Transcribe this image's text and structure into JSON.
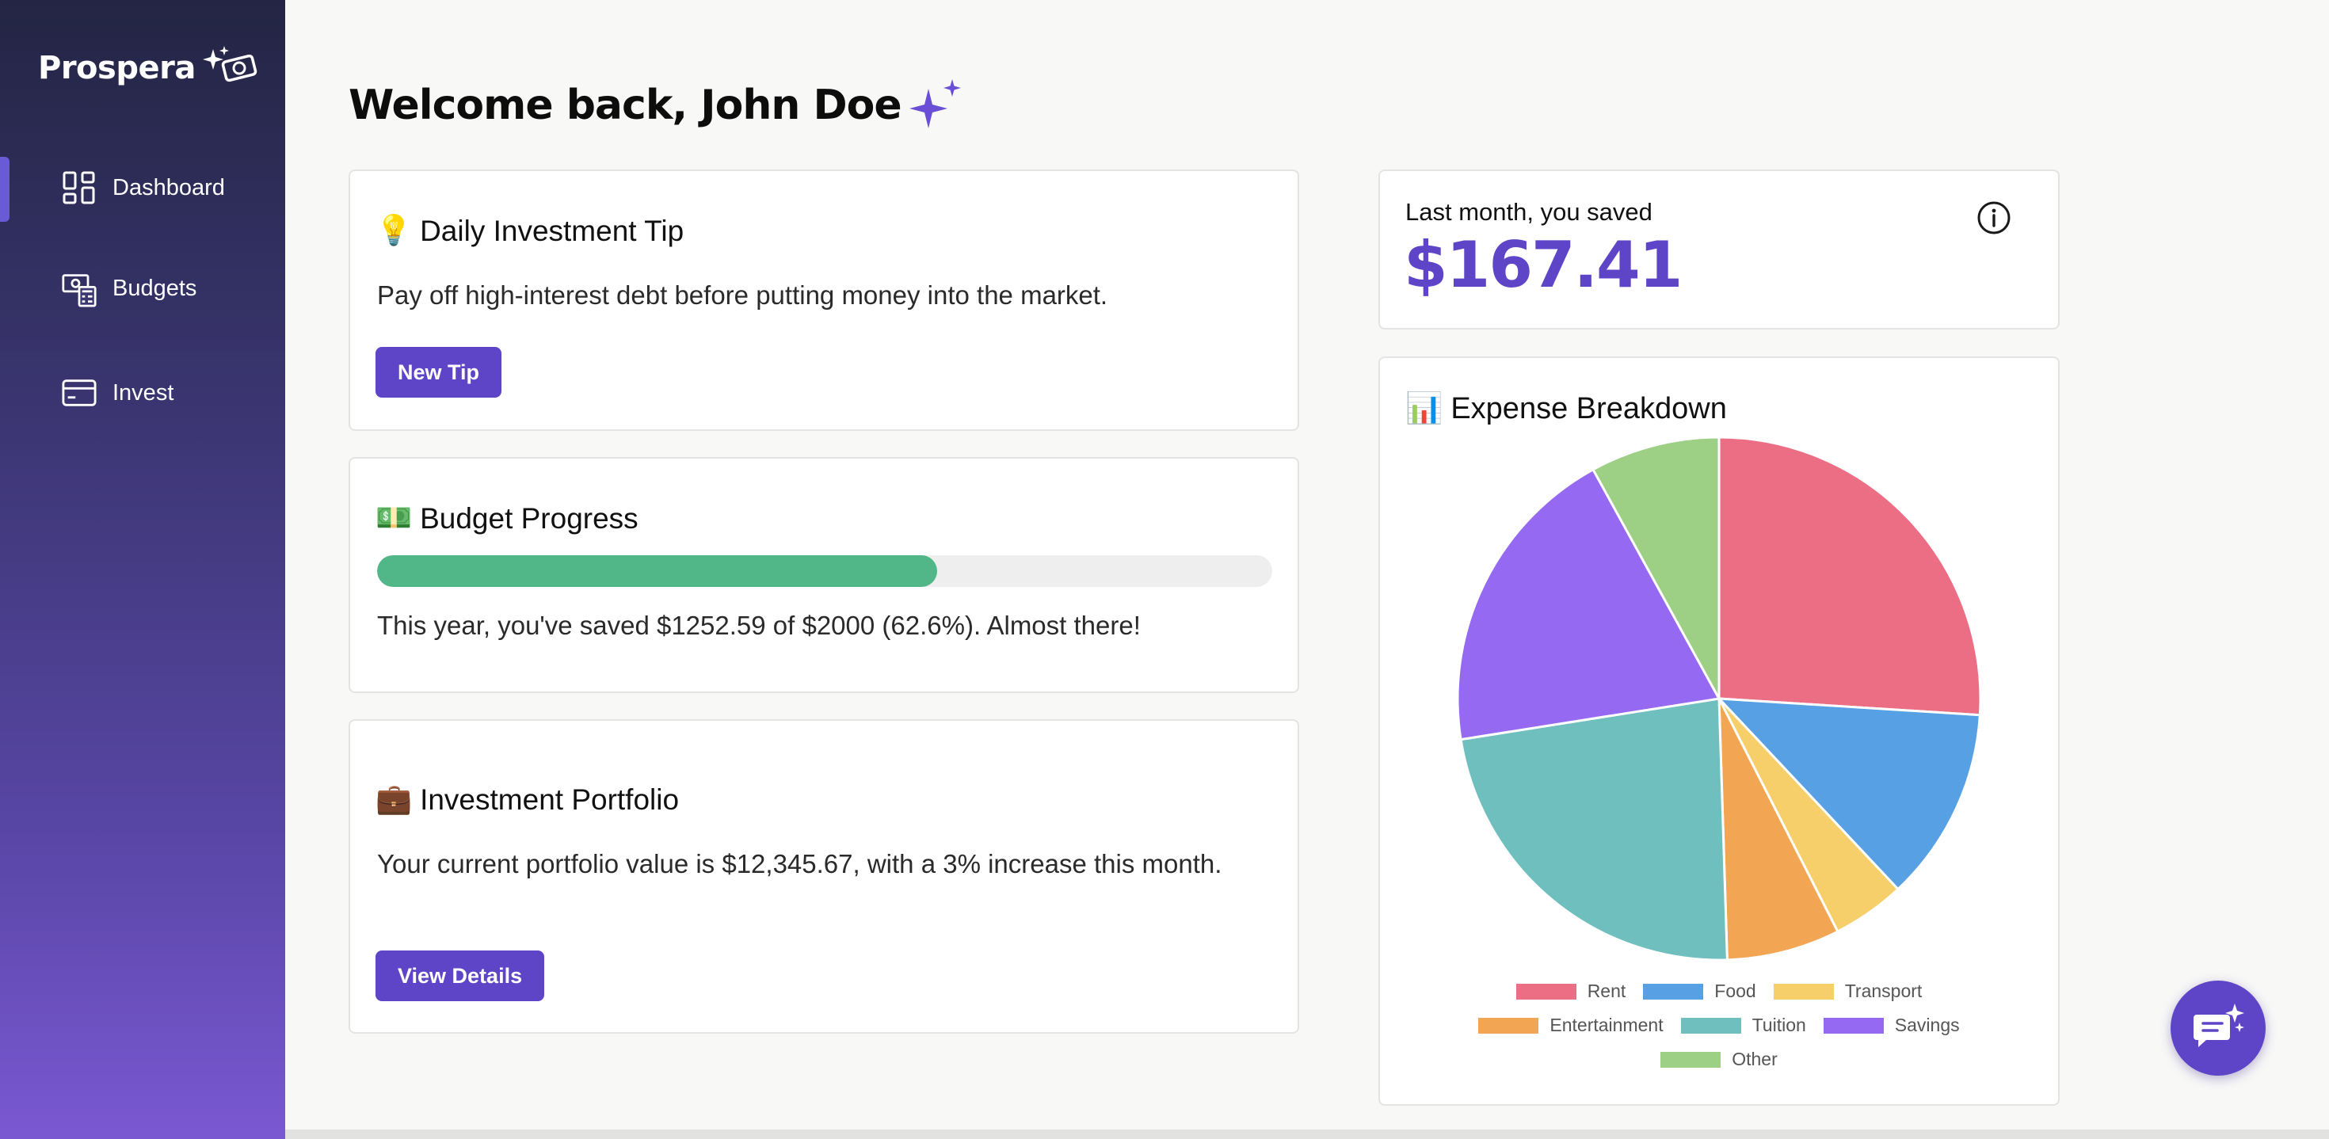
{
  "app": {
    "name": "Prospera"
  },
  "sidebar": {
    "items": [
      {
        "label": "Dashboard",
        "icon": "dashboard-icon",
        "active": true
      },
      {
        "label": "Budgets",
        "icon": "budgets-icon",
        "active": false
      },
      {
        "label": "Invest",
        "icon": "card-icon",
        "active": false
      }
    ]
  },
  "header": {
    "welcome": "Welcome back, John Doe"
  },
  "tip": {
    "emoji": "💡",
    "title": "Daily Investment Tip",
    "text": "Pay off high-interest debt before putting money into the market.",
    "button": "New Tip"
  },
  "budget": {
    "emoji": "💵",
    "title": "Budget Progress",
    "progress": 0.626,
    "text": "This year, you've saved $1252.59 of $2000 (62.6%). Almost there!"
  },
  "portfolio": {
    "emoji": "💼",
    "title": "Investment Portfolio",
    "text": "Your current portfolio value is $12,345.67, with a 3% increase this month.",
    "button": "View Details"
  },
  "savings": {
    "label": "Last month, you saved",
    "value": "$167.41"
  },
  "expense": {
    "emoji": "📊",
    "title": "Expense Breakdown"
  },
  "colors": {
    "accent": "#5e45c8",
    "progress": "#52b788"
  },
  "chart_data": {
    "type": "pie",
    "categories": [
      "Rent",
      "Food",
      "Transport",
      "Entertainment",
      "Tuition",
      "Savings",
      "Other"
    ],
    "values": [
      26,
      12,
      4.5,
      7,
      23,
      19.5,
      8
    ],
    "colors": [
      "#ec6e84",
      "#56a0e3",
      "#f6cf6b",
      "#f2a653",
      "#6fbfbf",
      "#9569f2",
      "#9dcf85"
    ],
    "legend": "bottom"
  }
}
